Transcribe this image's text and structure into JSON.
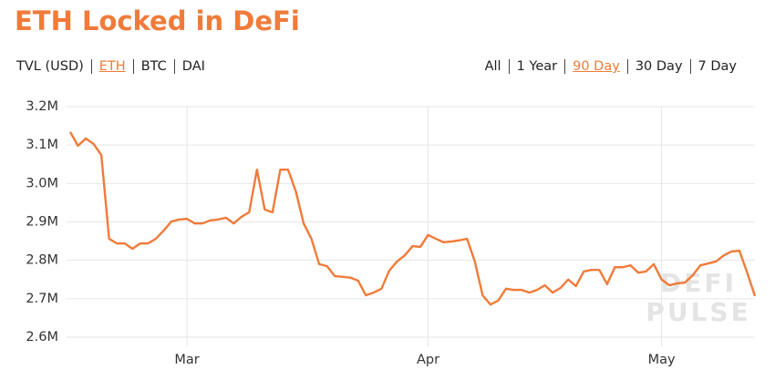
{
  "chart_data": {
    "type": "line",
    "title": "ETH Locked in DeFi",
    "metric_options": [
      "TVL (USD)",
      "ETH",
      "BTC",
      "DAI"
    ],
    "selected_metric": 1,
    "range_options": [
      "All",
      "1 Year",
      "90 Day",
      "30 Day",
      "7 Day"
    ],
    "selected_range": 2,
    "watermark": [
      "DEFI",
      "PULSE"
    ],
    "series": [
      {
        "color": "#f07b3a",
        "values": [
          3.134,
          3.098,
          3.117,
          3.103,
          3.074,
          2.856,
          2.844,
          2.844,
          2.83,
          2.844,
          2.844,
          2.856,
          2.877,
          2.901,
          2.906,
          2.908,
          2.896,
          2.896,
          2.904,
          2.906,
          2.911,
          2.896,
          2.913,
          2.925,
          3.036,
          2.932,
          2.925,
          3.036,
          3.036,
          2.979,
          2.896,
          2.856,
          2.79,
          2.785,
          2.759,
          2.757,
          2.755,
          2.747,
          2.709,
          2.716,
          2.726,
          2.773,
          2.797,
          2.813,
          2.837,
          2.835,
          2.866,
          2.856,
          2.847,
          2.849,
          2.852,
          2.856,
          2.797,
          2.709,
          2.685,
          2.695,
          2.726,
          2.723,
          2.723,
          2.716,
          2.723,
          2.735,
          2.716,
          2.728,
          2.75,
          2.733,
          2.771,
          2.775,
          2.775,
          2.738,
          2.782,
          2.782,
          2.787,
          2.768,
          2.771,
          2.79,
          2.75,
          2.735,
          2.74,
          2.742,
          2.761,
          2.787,
          2.792,
          2.797,
          2.813,
          2.823,
          2.825,
          2.768,
          2.707
        ]
      }
    ],
    "xlim": [
      0,
      88
    ],
    "xticks": [
      {
        "value": 15,
        "label": "Mar"
      },
      {
        "value": 46,
        "label": "Apr"
      },
      {
        "value": 76,
        "label": "May"
      }
    ],
    "ylim": [
      2.6,
      3.2
    ],
    "yticks": [
      {
        "value": 2.6,
        "label": "2.6M"
      },
      {
        "value": 2.7,
        "label": "2.7M"
      },
      {
        "value": 2.8,
        "label": "2.8M"
      },
      {
        "value": 2.9,
        "label": "2.9M"
      },
      {
        "value": 3.0,
        "label": "3.0M"
      },
      {
        "value": 3.1,
        "label": "3.1M"
      },
      {
        "value": 3.2,
        "label": "3.2M"
      }
    ],
    "grid": true
  }
}
